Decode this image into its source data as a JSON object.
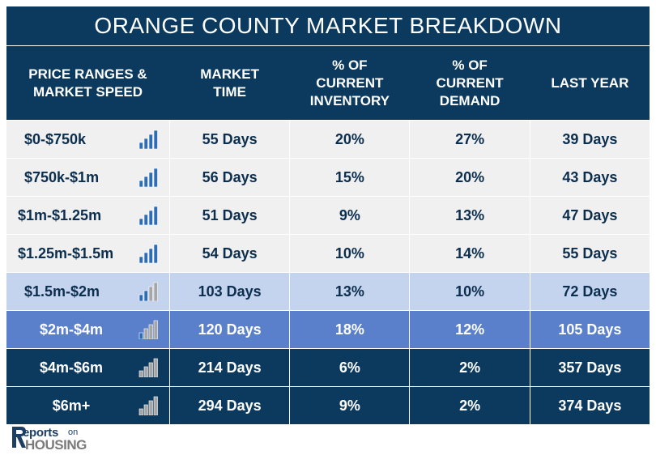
{
  "title": "ORANGE COUNTY MARKET BREAKDOWN",
  "headers": [
    "PRICE RANGES &\nMARKET SPEED",
    "MARKET\nTIME",
    "% OF\nCURRENT\nINVENTORY",
    "% OF\nCURRENT\nDEMAND",
    "LAST YEAR"
  ],
  "colors": {
    "header": "#0c3a5f",
    "row_light": "#f0f0f0",
    "row_pale_blue": "#c5d4ee",
    "row_mid_blue": "#5a80cc",
    "row_dark": "#0c3a5f",
    "text_dark": "#0c2e4e",
    "text_white": "#ffffff",
    "speed_blue": "#2f6db3",
    "speed_gray": "#a6a6a6"
  },
  "rows": [
    {
      "range": "$0-$750k",
      "market_time": "55 Days",
      "inventory": "20%",
      "demand": "27%",
      "last_year": "39 Days",
      "speed_level": 4,
      "speed_icon": "bar-signal-icon",
      "style": "light"
    },
    {
      "range": "$750k-$1m",
      "market_time": "56 Days",
      "inventory": "15%",
      "demand": "20%",
      "last_year": "43 Days",
      "speed_level": 4,
      "speed_icon": "bar-signal-icon",
      "style": "light"
    },
    {
      "range": "$1m-$1.25m",
      "market_time": "51 Days",
      "inventory": "9%",
      "demand": "13%",
      "last_year": "47 Days",
      "speed_level": 4,
      "speed_icon": "bar-signal-icon",
      "style": "light"
    },
    {
      "range": "$1.25m-$1.5m",
      "market_time": "54 Days",
      "inventory": "10%",
      "demand": "14%",
      "last_year": "55 Days",
      "speed_level": 4,
      "speed_icon": "bar-signal-icon",
      "style": "light"
    },
    {
      "range": "$1.5m-$2m",
      "market_time": "103 Days",
      "inventory": "13%",
      "demand": "10%",
      "last_year": "72 Days",
      "speed_level": 2,
      "speed_icon": "bar-signal-icon",
      "style": "pale_blue"
    },
    {
      "range": "$2m-$4m",
      "market_time": "120 Days",
      "inventory": "18%",
      "demand": "12%",
      "last_year": "105 Days",
      "speed_level": 1,
      "speed_icon": "bar-signal-icon",
      "style": "mid_blue"
    },
    {
      "range": "$4m-$6m",
      "market_time": "214 Days",
      "inventory": "6%",
      "demand": "2%",
      "last_year": "357 Days",
      "speed_level": 0,
      "speed_icon": "bar-signal-icon",
      "style": "dark"
    },
    {
      "range": "$6m+",
      "market_time": "294 Days",
      "inventory": "9%",
      "demand": "2%",
      "last_year": "374 Days",
      "speed_level": 0,
      "speed_icon": "bar-signal-icon",
      "style": "dark"
    }
  ],
  "logo": {
    "part1": "eports",
    "part2": "on",
    "part3": "HOUSING",
    "initial": "R"
  }
}
